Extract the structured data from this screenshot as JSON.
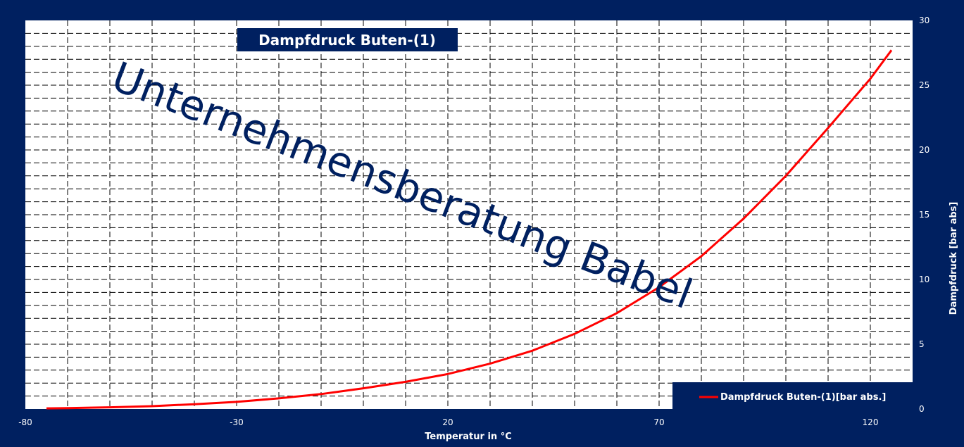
{
  "chart_data": {
    "type": "line",
    "title": "Dampfdruck Buten-(1)",
    "xlabel": "Temperatur  in °C",
    "ylabel": "Dampfdruck  [bar abs]",
    "xlim": [
      -80,
      130
    ],
    "ylim": [
      0,
      30
    ],
    "x_ticks": [
      -80,
      -30,
      20,
      70,
      120
    ],
    "y_ticks": [
      0,
      5,
      10,
      15,
      20,
      25,
      30
    ],
    "grid": true,
    "legend_position": "bottom-right",
    "series": [
      {
        "name": "Dampfdruck Buten-(1)[bar abs.]",
        "color": "#ff0000",
        "x": [
          -75,
          -70,
          -60,
          -50,
          -40,
          -30,
          -20,
          -10,
          0,
          10,
          20,
          30,
          40,
          50,
          60,
          70,
          80,
          90,
          100,
          110,
          120,
          125
        ],
        "y": [
          0.05,
          0.07,
          0.13,
          0.22,
          0.37,
          0.55,
          0.82,
          1.15,
          1.6,
          2.1,
          2.7,
          3.5,
          4.5,
          5.8,
          7.4,
          9.4,
          11.8,
          14.7,
          18.0,
          21.7,
          25.5,
          27.7
        ]
      }
    ],
    "watermark": "Unternehmensberatung Babel"
  },
  "colors": {
    "background": "#002060",
    "plot_area": "#ffffff",
    "grid": "#000000",
    "title_box": "#002060",
    "watermark": "#002060"
  }
}
